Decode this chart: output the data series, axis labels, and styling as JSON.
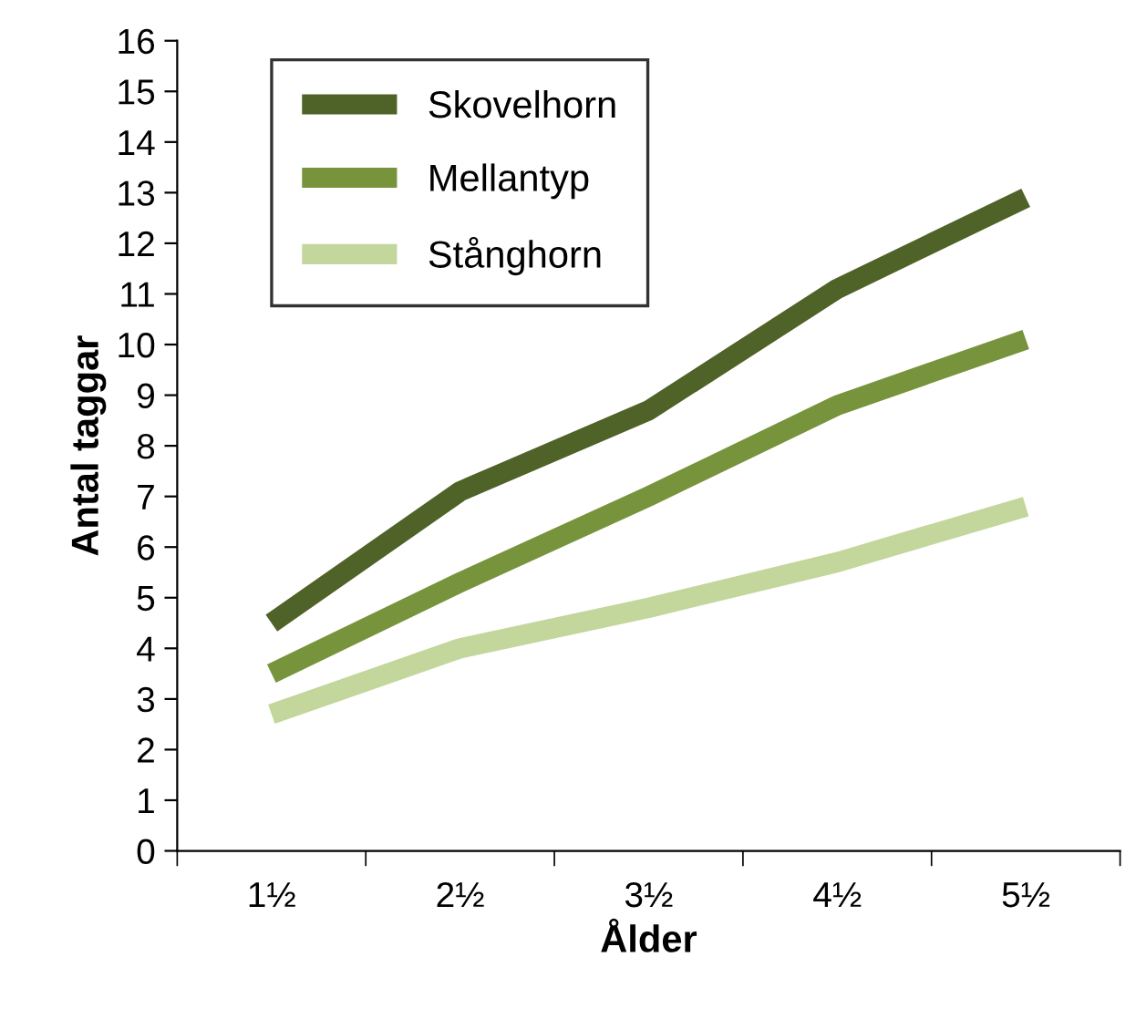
{
  "chart_data": {
    "type": "line",
    "xlabel": "Ålder",
    "ylabel": "Antal taggar",
    "categories": [
      "1½",
      "2½",
      "3½",
      "4½",
      "5½"
    ],
    "series": [
      {
        "name": "Skovelhorn",
        "color": "#4f6228",
        "values": [
          4.5,
          7.1,
          8.7,
          11.1,
          12.9
        ]
      },
      {
        "name": "Mellantyp",
        "color": "#77933c",
        "values": [
          3.5,
          5.3,
          7.0,
          8.8,
          10.1
        ]
      },
      {
        "name": "Stånghorn",
        "color": "#c3d69b",
        "values": [
          2.7,
          4.0,
          4.8,
          5.7,
          6.8
        ]
      }
    ],
    "ylim": [
      0,
      16
    ],
    "yticks": [
      0,
      1,
      2,
      3,
      4,
      5,
      6,
      7,
      8,
      9,
      10,
      11,
      12,
      13,
      14,
      15,
      16
    ],
    "grid": false,
    "legend": "top left",
    "marker": "none",
    "line_style": "solid"
  }
}
